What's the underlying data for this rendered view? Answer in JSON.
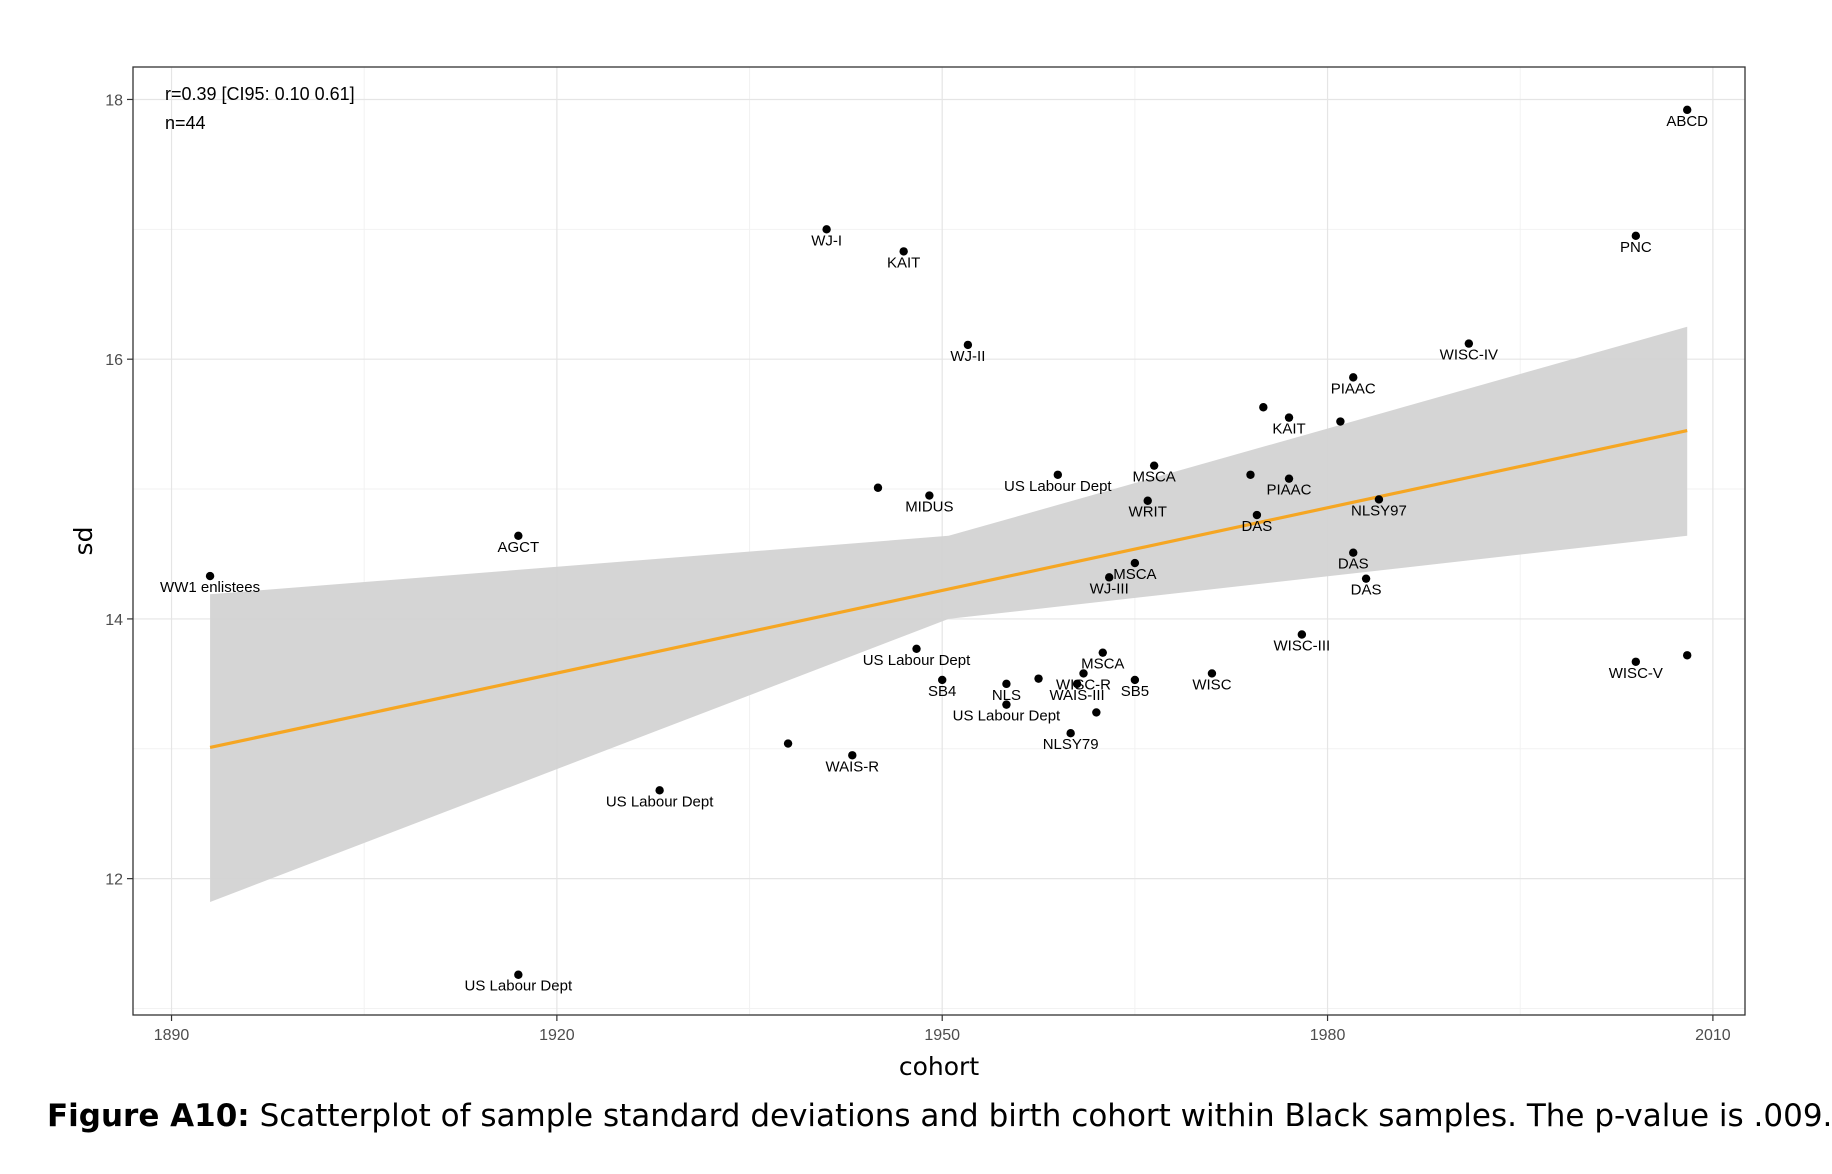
{
  "chart_data": {
    "type": "scatter",
    "xlabel": "cohort",
    "ylabel": "sd",
    "xlim": [
      1887,
      2012.5
    ],
    "ylim": [
      10.95,
      18.25
    ],
    "x_ticks": [
      1890,
      1920,
      1950,
      1980,
      2010
    ],
    "y_ticks": [
      12,
      14,
      16,
      18
    ],
    "grid": true,
    "annotations": [
      "r=0.39 [CI95: 0.10 0.61]",
      "n=44"
    ],
    "regression": {
      "x": [
        1893,
        2008
      ],
      "y": [
        13.01,
        15.45
      ],
      "ci_x": [
        1893,
        1950.5,
        2008
      ],
      "ci_low": [
        11.82,
        14.0,
        14.64
      ],
      "ci_high": [
        14.19,
        14.64,
        16.25
      ],
      "color": "#f5a623",
      "band_color": "#d3d3d3"
    },
    "points": [
      {
        "x": 1893,
        "y": 14.33,
        "label": "WW1 enlistees"
      },
      {
        "x": 1917,
        "y": 14.64,
        "label": "AGCT"
      },
      {
        "x": 1917,
        "y": 11.26,
        "label": "US Labour Dept"
      },
      {
        "x": 1928,
        "y": 12.68,
        "label": "US Labour Dept"
      },
      {
        "x": 1938,
        "y": 13.04,
        "label": ""
      },
      {
        "x": 1941,
        "y": 17.0,
        "label": "WJ-I"
      },
      {
        "x": 1943,
        "y": 12.95,
        "label": "WAIS-R"
      },
      {
        "x": 1945,
        "y": 15.01,
        "label": ""
      },
      {
        "x": 1947,
        "y": 16.83,
        "label": "KAIT"
      },
      {
        "x": 1948,
        "y": 13.77,
        "label": "US Labour Dept"
      },
      {
        "x": 1949,
        "y": 14.95,
        "label": "MIDUS"
      },
      {
        "x": 1950,
        "y": 13.53,
        "label": "SB4"
      },
      {
        "x": 1952,
        "y": 16.11,
        "label": "WJ-II"
      },
      {
        "x": 1955,
        "y": 13.5,
        "label": "NLS"
      },
      {
        "x": 1955,
        "y": 13.34,
        "label": "US Labour Dept"
      },
      {
        "x": 1957.5,
        "y": 13.54,
        "label": ""
      },
      {
        "x": 1959,
        "y": 15.11,
        "label": "US Labour Dept"
      },
      {
        "x": 1960,
        "y": 13.12,
        "label": "NLSY79"
      },
      {
        "x": 1960.5,
        "y": 13.5,
        "label": "WAIS-III"
      },
      {
        "x": 1961,
        "y": 13.58,
        "label": "WISC-R"
      },
      {
        "x": 1962,
        "y": 13.28,
        "label": ""
      },
      {
        "x": 1962.5,
        "y": 13.74,
        "label": "MSCA"
      },
      {
        "x": 1963,
        "y": 14.32,
        "label": "WJ-III"
      },
      {
        "x": 1965,
        "y": 13.53,
        "label": "SB5"
      },
      {
        "x": 1965,
        "y": 14.43,
        "label": "MSCA"
      },
      {
        "x": 1966,
        "y": 14.91,
        "label": "WRIT"
      },
      {
        "x": 1966.5,
        "y": 15.18,
        "label": "MSCA"
      },
      {
        "x": 1971,
        "y": 13.58,
        "label": "WISC"
      },
      {
        "x": 1974,
        "y": 15.11,
        "label": ""
      },
      {
        "x": 1974.5,
        "y": 14.8,
        "label": "DAS"
      },
      {
        "x": 1975,
        "y": 15.63,
        "label": ""
      },
      {
        "x": 1977,
        "y": 15.08,
        "label": "PIAAC"
      },
      {
        "x": 1977,
        "y": 15.55,
        "label": "KAIT"
      },
      {
        "x": 1978,
        "y": 13.88,
        "label": "WISC-III"
      },
      {
        "x": 1981,
        "y": 15.52,
        "label": ""
      },
      {
        "x": 1982,
        "y": 15.86,
        "label": "PIAAC"
      },
      {
        "x": 1982,
        "y": 14.51,
        "label": "DAS"
      },
      {
        "x": 1983,
        "y": 14.31,
        "label": "DAS"
      },
      {
        "x": 1984,
        "y": 14.92,
        "label": "NLSY97"
      },
      {
        "x": 1991,
        "y": 16.12,
        "label": "WISC-IV"
      },
      {
        "x": 2004,
        "y": 13.67,
        "label": "WISC-V"
      },
      {
        "x": 2004,
        "y": 16.95,
        "label": "PNC"
      },
      {
        "x": 2008,
        "y": 13.72,
        "label": ""
      },
      {
        "x": 2008,
        "y": 17.92,
        "label": "ABCD"
      }
    ]
  },
  "caption": {
    "label": "Figure A10:",
    "text": "Scatterplot of sample standard deviations and birth cohort within Black samples. The p-value is .009."
  }
}
